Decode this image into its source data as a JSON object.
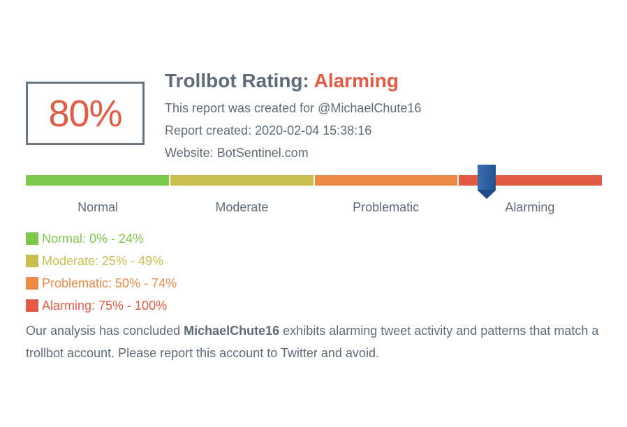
{
  "score": {
    "value": "80%"
  },
  "title": {
    "prefix": "Trollbot Rating: ",
    "rating": "Alarming"
  },
  "meta": {
    "created_for": "This report was created for @MichaelChute16",
    "created_at": "Report created: 2020-02-04 15:38:16",
    "website": "Website: BotSentinel.com"
  },
  "scale": {
    "marker_fraction": 0.8,
    "segments": [
      {
        "label": "Normal",
        "color": "#7ec94c"
      },
      {
        "label": "Moderate",
        "color": "#c8bf4c"
      },
      {
        "label": "Problematic",
        "color": "#ec8945"
      },
      {
        "label": "Alarming",
        "color": "#e45b45"
      }
    ],
    "marker_color": "#2f5e9f"
  },
  "legend": [
    {
      "text": "Normal: 0% - 24%",
      "color": "#7ec94c"
    },
    {
      "text": "Moderate: 25% - 49%",
      "color": "#c8bf4c"
    },
    {
      "text": "Problematic: 50% - 74%",
      "color": "#ec8945"
    },
    {
      "text": "Alarming: 75% - 100%",
      "color": "#e45b45"
    }
  ],
  "conclusion": {
    "before": "Our analysis has concluded ",
    "account": "MichaelChute16",
    "after": " exhibits alarming tweet activity and patterns that match a trollbot account. Please report this account to Twitter and avoid."
  }
}
